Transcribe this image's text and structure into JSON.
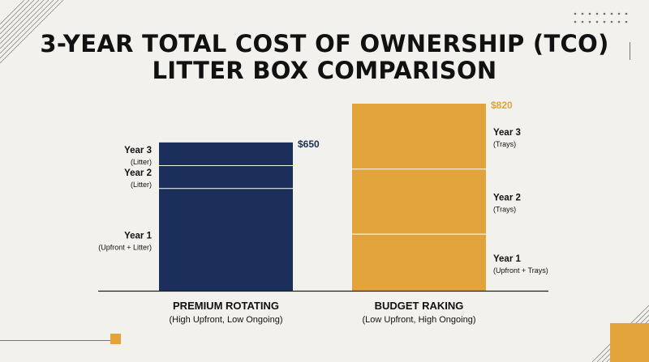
{
  "title_lines": [
    "3-YEAR TOTAL COST OF OWNERSHIP (TCO)",
    "LITTER BOX COMPARISON"
  ],
  "colors": {
    "background": "#f2f1ed",
    "premium": "#1c2e5a",
    "budget": "#e2a33b",
    "text": "#111111",
    "decor": "#8a8a8a"
  },
  "chart_data": {
    "type": "bar",
    "stacked": true,
    "categories": [
      "PREMIUM ROTATING",
      "BUDGET RAKING"
    ],
    "category_subtitles": [
      "(High Upfront, Low Ongoing)",
      "(Low Upfront, High Ongoing)"
    ],
    "totals": [
      "$650",
      "$820"
    ],
    "total_values": [
      650,
      820
    ],
    "series": [
      {
        "stack": "PREMIUM ROTATING",
        "segments": [
          {
            "label": "Year 1",
            "sublabel": "(Upfront + Litter)",
            "value": 450
          },
          {
            "label": "Year 2",
            "sublabel": "(Litter)",
            "value": 100
          },
          {
            "label": "Year 3",
            "sublabel": "(Litter)",
            "value": 100
          }
        ]
      },
      {
        "stack": "BUDGET RAKING",
        "segments": [
          {
            "label": "Year 1",
            "sublabel": "(Upfront + Trays)",
            "value": 250
          },
          {
            "label": "Year 2",
            "sublabel": "(Trays)",
            "value": 285
          },
          {
            "label": "Year 3",
            "sublabel": "(Trays)",
            "value": 285
          }
        ]
      }
    ],
    "ylim": [
      0,
      820
    ],
    "grid": false,
    "legend": "none"
  }
}
